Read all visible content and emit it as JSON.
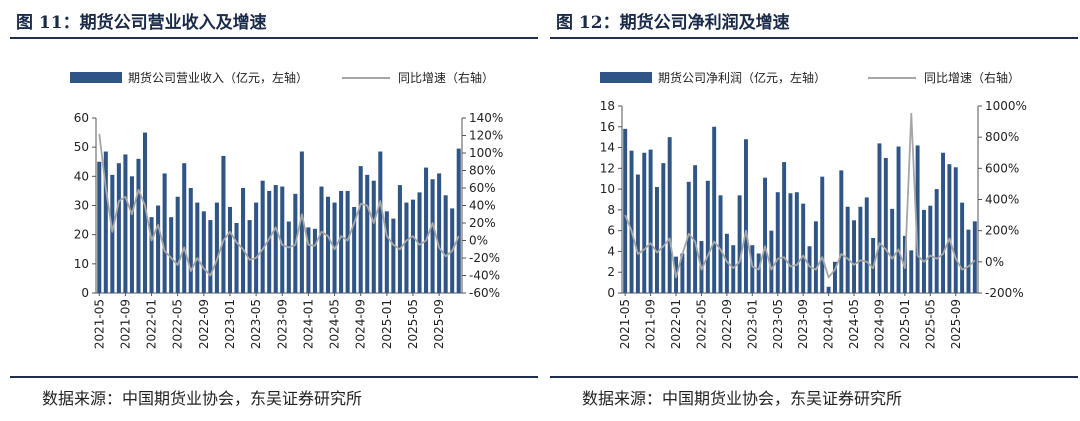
{
  "left": {
    "title": "图 11：期货公司营业收入及增速",
    "source": "数据来源：中国期货业协会，东吴证券研究所",
    "chart_data": {
      "type": "bar+line",
      "title": "期货公司营业收入及增速",
      "legend": [
        {
          "name": "期货公司营业收入（亿元，左轴）",
          "kind": "bar",
          "color": "#2e5585"
        },
        {
          "name": "同比增速（右轴）",
          "kind": "line",
          "color": "#a6a6a6"
        }
      ],
      "legend_position": "top",
      "left_axis": {
        "min": 0,
        "max": 60,
        "ticks": [
          "0",
          "10",
          "20",
          "30",
          "40",
          "50",
          "60"
        ]
      },
      "right_axis": {
        "min": -60,
        "max": 140,
        "ticks": [
          "-60%",
          "-40%",
          "-20%",
          "0%",
          "20%",
          "40%",
          "60%",
          "80%",
          "100%",
          "120%",
          "140%"
        ]
      },
      "x_ticks": [
        "2021-05",
        "2021-09",
        "2022-01",
        "2022-05",
        "2022-09",
        "2023-01",
        "2023-05",
        "2023-09",
        "2024-01",
        "2024-05",
        "2024-09",
        "2025-01",
        "2025-05",
        "2025-09"
      ],
      "bar_values": [
        45,
        48.5,
        40.5,
        44.5,
        47.5,
        40,
        46,
        55,
        26,
        30,
        41,
        26,
        33,
        44.5,
        36,
        31,
        28,
        25,
        31,
        47,
        29.5,
        24,
        36,
        25,
        31,
        38.5,
        35,
        37,
        36.5,
        24.5,
        34,
        48.5,
        22.5,
        22,
        36.5,
        33,
        31,
        35,
        35,
        29.5,
        43.5,
        40.5,
        38.5,
        48.5,
        28,
        25.5,
        37,
        31,
        32,
        34.5,
        43,
        39,
        41,
        33.5,
        29,
        49.5
      ],
      "growth_values": [
        122,
        60,
        10,
        45,
        50,
        30,
        58,
        40,
        0,
        18,
        -12,
        -20,
        -28,
        -8,
        -35,
        -20,
        -32,
        -40,
        -22,
        0,
        10,
        -2,
        -10,
        -22,
        -20,
        -10,
        2,
        15,
        -5,
        -8,
        -5,
        30,
        -5,
        -6,
        10,
        5,
        -10,
        5,
        0,
        20,
        42,
        40,
        20,
        45,
        5,
        -5,
        -10,
        0,
        5,
        -5,
        0,
        20,
        -8,
        -18,
        -12,
        5
      ],
      "ylabel_left": "亿元",
      "ylabel_right": "%"
    }
  },
  "right": {
    "title": "图 12：期货公司净利润及增速",
    "source": "数据来源：中国期货业协会，东吴证券研究所",
    "chart_data": {
      "type": "bar+line",
      "title": "期货公司净利润及增速",
      "legend": [
        {
          "name": "期货公司净利润（亿元，左轴）",
          "kind": "bar",
          "color": "#2e5585"
        },
        {
          "name": "同比增速（右轴）",
          "kind": "line",
          "color": "#a6a6a6"
        }
      ],
      "legend_position": "top",
      "left_axis": {
        "min": 0,
        "max": 18,
        "ticks": [
          "0",
          "2",
          "4",
          "6",
          "8",
          "10",
          "12",
          "14",
          "16",
          "18"
        ]
      },
      "right_axis": {
        "min": -200,
        "max": 1000,
        "ticks": [
          "-200%",
          "0%",
          "200%",
          "400%",
          "600%",
          "800%",
          "1000%"
        ]
      },
      "x_ticks": [
        "2021-05",
        "2021-09",
        "2022-01",
        "2022-05",
        "2022-09",
        "2023-01",
        "2023-05",
        "2023-09",
        "2024-01",
        "2024-05",
        "2024-09",
        "2025-01",
        "2025-05",
        "2025-09"
      ],
      "bar_values": [
        15.8,
        13.7,
        11.4,
        13.5,
        13.8,
        10.2,
        12.5,
        15,
        3.5,
        3.8,
        10.7,
        12.3,
        5,
        10.8,
        16,
        9.4,
        5.7,
        4.6,
        9.4,
        14.8,
        4.6,
        3.8,
        11.1,
        6,
        9.7,
        12.6,
        9.6,
        9.7,
        8.6,
        4.5,
        6.9,
        11.2,
        0.6,
        3,
        11.8,
        8.3,
        7,
        8.3,
        9.2,
        5.3,
        14.4,
        13,
        8.1,
        14.1,
        5.5,
        4.1,
        14.2,
        8,
        8.4,
        10,
        13.5,
        12.4,
        12.1,
        8.7,
        6.1,
        6.9
      ],
      "growth_values": [
        300,
        200,
        50,
        80,
        120,
        60,
        100,
        150,
        -100,
        50,
        180,
        130,
        -50,
        40,
        130,
        80,
        0,
        -40,
        0,
        200,
        -30,
        -50,
        100,
        -50,
        20,
        30,
        -30,
        -20,
        40,
        -30,
        -50,
        30,
        -100,
        -50,
        50,
        20,
        -20,
        10,
        0,
        -40,
        120,
        80,
        20,
        80,
        -40,
        950,
        40,
        0,
        40,
        20,
        50,
        150,
        20,
        -50,
        -30,
        10
      ],
      "ylabel_left": "亿元",
      "ylabel_right": "%"
    }
  }
}
